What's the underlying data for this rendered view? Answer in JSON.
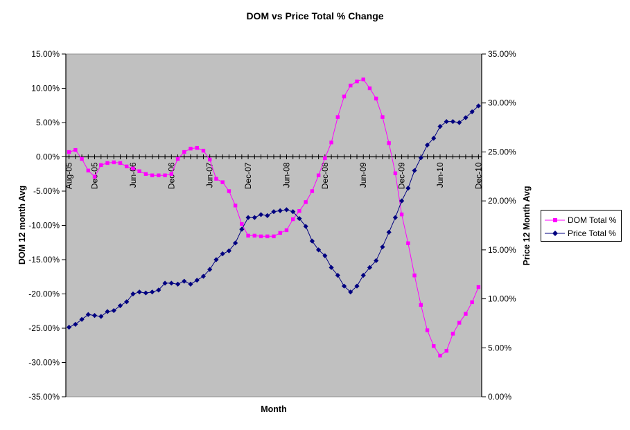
{
  "chart": {
    "title": "DOM vs Price Total % Change",
    "x_axis_title": "Month",
    "left_axis_title": "DOM 12 month Avg",
    "right_axis_title": "Price 12 Month Avg",
    "legend": [
      {
        "label": "DOM Total %",
        "color": "#FF00FF",
        "marker": "square"
      },
      {
        "label": "Price Total %",
        "color": "#000080",
        "marker": "diamond"
      }
    ]
  },
  "chart_data": {
    "type": "line",
    "title": "DOM vs Price Total % Change",
    "xlabel": "Month",
    "ylabel_left": "DOM 12 month Avg",
    "ylabel_right": "Price 12 Month Avg",
    "plot_bg": "#C0C0C0",
    "grid": false,
    "legend_position": "right",
    "left_axis": {
      "min": -35,
      "max": 15,
      "step": 5,
      "format": "percent2"
    },
    "right_axis": {
      "min": 0,
      "max": 35,
      "step": 5,
      "format": "percent2"
    },
    "categories": [
      "Aug-05",
      "Sep-05",
      "Oct-05",
      "Nov-05",
      "Dec-05",
      "Jan-06",
      "Feb-06",
      "Mar-06",
      "Apr-06",
      "May-06",
      "Jun-06",
      "Jul-06",
      "Aug-06",
      "Sep-06",
      "Oct-06",
      "Nov-06",
      "Dec-06",
      "Jan-07",
      "Feb-07",
      "Mar-07",
      "Apr-07",
      "May-07",
      "Jun-07",
      "Jul-07",
      "Aug-07",
      "Sep-07",
      "Oct-07",
      "Nov-07",
      "Dec-07",
      "Jan-08",
      "Feb-08",
      "Mar-08",
      "Apr-08",
      "May-08",
      "Jun-08",
      "Jul-08",
      "Aug-08",
      "Sep-08",
      "Oct-08",
      "Nov-08",
      "Dec-08",
      "Jan-09",
      "Feb-09",
      "Mar-09",
      "Apr-09",
      "May-09",
      "Jun-09",
      "Jul-09",
      "Aug-09",
      "Sep-09",
      "Oct-09",
      "Nov-09",
      "Dec-09",
      "Jan-10",
      "Feb-10",
      "Mar-10",
      "Apr-10",
      "May-10",
      "Jun-10",
      "Jul-10",
      "Aug-10",
      "Sep-10",
      "Oct-10",
      "Nov-10",
      "Dec-10"
    ],
    "x_tick_labels": [
      {
        "index": 0,
        "label": "Aug-05"
      },
      {
        "index": 4,
        "label": "Dec-05"
      },
      {
        "index": 10,
        "label": "Jun-06"
      },
      {
        "index": 16,
        "label": "Dec-06"
      },
      {
        "index": 22,
        "label": "Jun-07"
      },
      {
        "index": 28,
        "label": "Dec-07"
      },
      {
        "index": 34,
        "label": "Jun-08"
      },
      {
        "index": 40,
        "label": "Dec-08"
      },
      {
        "index": 46,
        "label": "Jun-09"
      },
      {
        "index": 52,
        "label": "Dec-09"
      },
      {
        "index": 58,
        "label": "Jun-10"
      },
      {
        "index": 64,
        "label": "Dec-10"
      }
    ],
    "series": [
      {
        "name": "DOM Total %",
        "axis": "left",
        "color": "#FF00FF",
        "marker": "square",
        "values": [
          0.7,
          1.0,
          -0.3,
          -2.0,
          -2.9,
          -1.2,
          -0.9,
          -0.8,
          -0.9,
          -1.4,
          -1.7,
          -2.1,
          -2.5,
          -2.7,
          -2.7,
          -2.7,
          -2.5,
          -0.3,
          0.7,
          1.2,
          1.3,
          0.9,
          -0.4,
          -3.2,
          -3.7,
          -5.0,
          -7.1,
          -9.8,
          -11.5,
          -11.5,
          -11.6,
          -11.6,
          -11.6,
          -11.1,
          -10.7,
          -9.1,
          -7.9,
          -6.6,
          -5.0,
          -2.7,
          -0.2,
          2.1,
          5.8,
          8.8,
          10.4,
          11.0,
          11.3,
          10.0,
          8.5,
          5.8,
          2.0,
          -2.4,
          -8.4,
          -12.6,
          -17.3,
          -21.6,
          -25.3,
          -27.6,
          -29.0,
          -28.3,
          -25.8,
          -24.2,
          -22.9,
          -21.2,
          -19.0
        ]
      },
      {
        "name": "Price Total %",
        "axis": "right",
        "color": "#000080",
        "marker": "diamond",
        "values": [
          7.1,
          7.4,
          7.9,
          8.4,
          8.3,
          8.2,
          8.7,
          8.8,
          9.3,
          9.7,
          10.5,
          10.7,
          10.6,
          10.7,
          10.9,
          11.6,
          11.6,
          11.5,
          11.8,
          11.5,
          11.9,
          12.3,
          13.0,
          14.0,
          14.6,
          14.9,
          15.7,
          17.1,
          18.3,
          18.3,
          18.6,
          18.5,
          18.9,
          19.0,
          19.1,
          18.9,
          18.2,
          17.4,
          15.9,
          15.0,
          14.4,
          13.2,
          12.4,
          11.3,
          10.7,
          11.3,
          12.4,
          13.2,
          13.9,
          15.3,
          16.8,
          18.3,
          20.0,
          21.3,
          23.1,
          24.4,
          25.7,
          26.4,
          27.6,
          28.1,
          28.1,
          28.0,
          28.5,
          29.1,
          29.7
        ]
      }
    ]
  }
}
